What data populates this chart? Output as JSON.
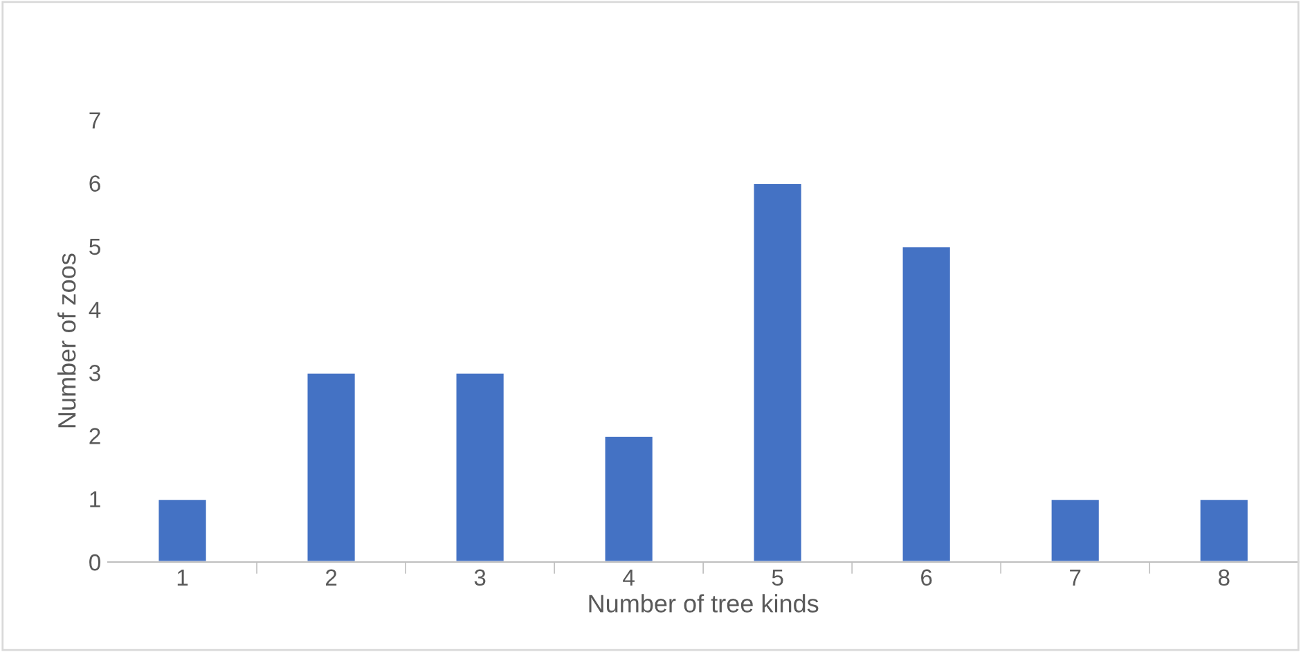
{
  "chart_data": {
    "type": "bar",
    "xlabel": "Number of tree kinds",
    "ylabel": "Number of zoos",
    "categories": [
      "1",
      "2",
      "3",
      "4",
      "5",
      "6",
      "7",
      "8"
    ],
    "values": [
      1,
      3,
      3,
      2,
      6,
      5,
      1,
      1
    ],
    "color": "#4472c4",
    "ylim": [
      0,
      7
    ],
    "yticks": [
      0,
      1,
      2,
      3,
      4,
      5,
      6,
      7
    ],
    "grid": false,
    "legend": false
  }
}
